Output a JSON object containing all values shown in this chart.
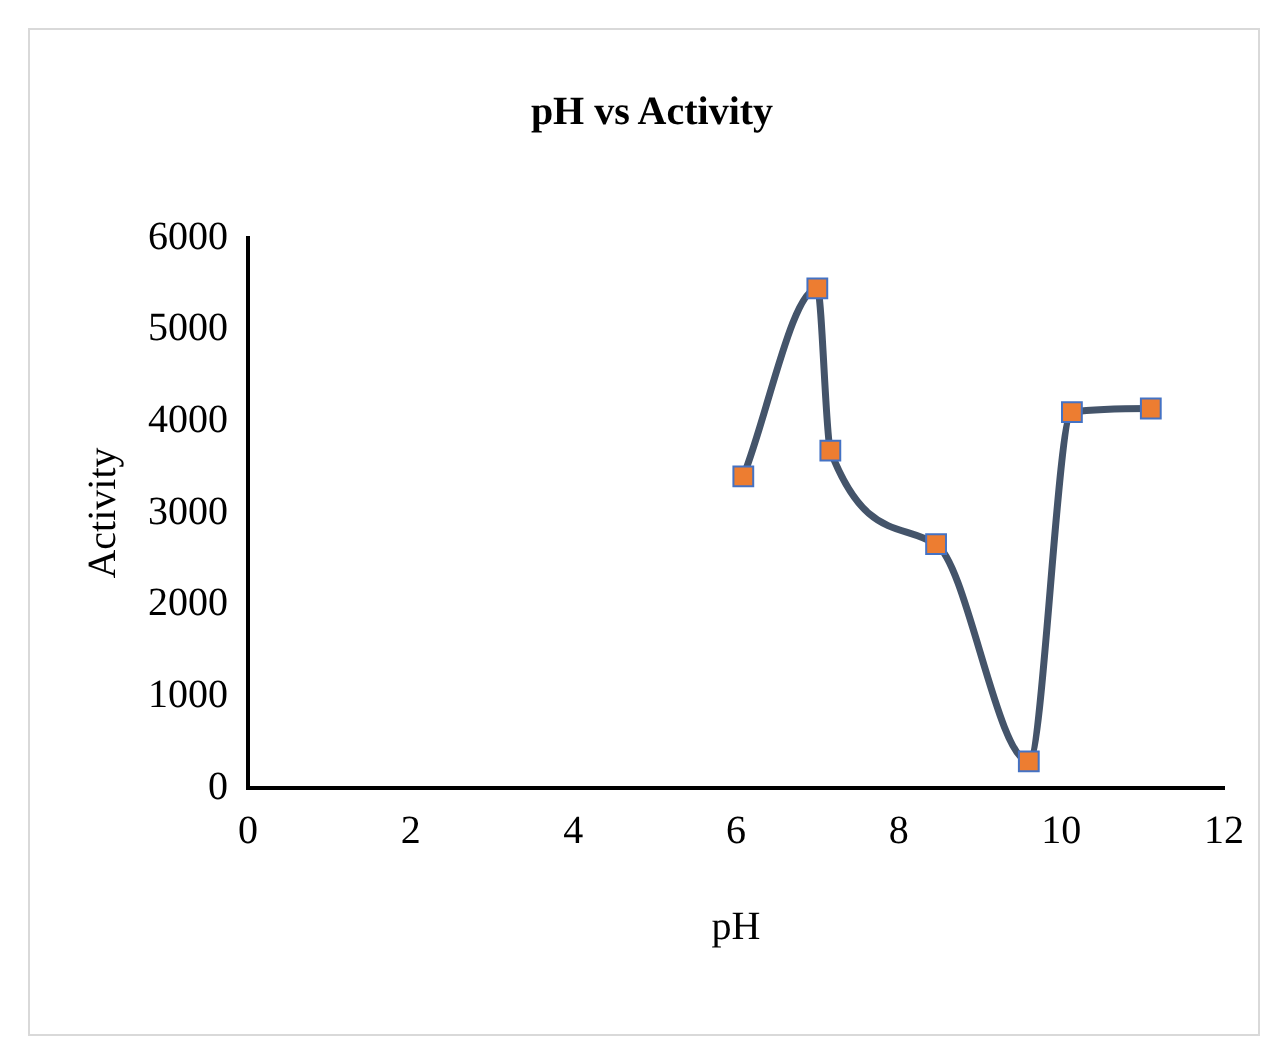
{
  "chart_data": {
    "type": "line",
    "title": "pH vs Activity",
    "xlabel": "pH",
    "ylabel": "Activity",
    "x": [
      6.09,
      7.0,
      7.16,
      8.46,
      9.6,
      10.13,
      11.1
    ],
    "series": [
      {
        "color": "#44546a",
        "values": [
          3400,
          5450,
          3680,
          2660,
          290,
          4100,
          4140
        ]
      }
    ],
    "xlim": [
      0,
      12
    ],
    "xticks": [
      0,
      2,
      4,
      6,
      8,
      10,
      12
    ],
    "ylim": [
      0,
      6000
    ],
    "yticks": [
      0,
      1000,
      2000,
      3000,
      4000,
      5000,
      6000
    ],
    "grid": false,
    "legend": false,
    "marker": "square",
    "line_style": "solid"
  }
}
